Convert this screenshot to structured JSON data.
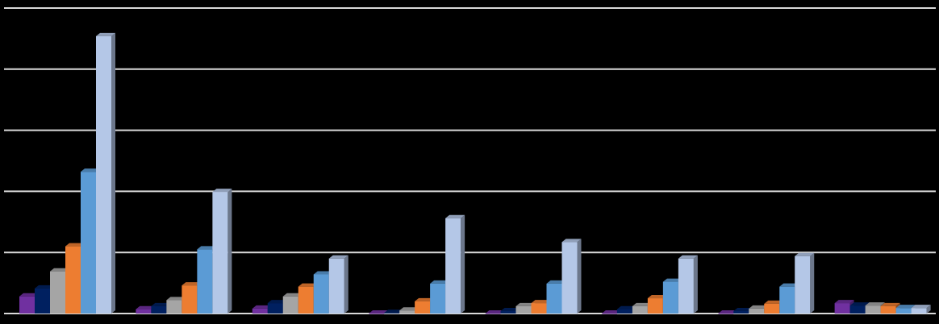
{
  "chart_data": {
    "type": "bar3d",
    "categories": [
      null,
      null,
      null,
      null,
      null,
      null,
      null,
      null
    ],
    "series": [
      {
        "color": "#7030a0",
        "values": [
          0.28,
          0.07,
          0.08,
          0.0,
          0.0,
          0.0,
          0.0,
          0.17
        ]
      },
      {
        "color": "#002060",
        "values": [
          0.41,
          0.12,
          0.17,
          0.01,
          0.04,
          0.07,
          0.04,
          0.13
        ]
      },
      {
        "color": "#a5a5a5",
        "values": [
          0.69,
          0.22,
          0.28,
          0.05,
          0.12,
          0.12,
          0.08,
          0.13
        ]
      },
      {
        "color": "#ed7d31",
        "values": [
          1.1,
          0.46,
          0.44,
          0.2,
          0.17,
          0.25,
          0.16,
          0.12
        ]
      },
      {
        "color": "#5b9bd5",
        "values": [
          2.32,
          1.05,
          0.64,
          0.49,
          0.49,
          0.52,
          0.44,
          0.09
        ]
      },
      {
        "color": "#b4c7e7",
        "values": [
          4.54,
          1.99,
          0.9,
          1.56,
          1.17,
          0.9,
          0.94,
          0.09
        ]
      }
    ],
    "ylim": [
      0,
      5
    ],
    "yticks": [
      0,
      1,
      2,
      3,
      4,
      5
    ],
    "grid": true
  }
}
